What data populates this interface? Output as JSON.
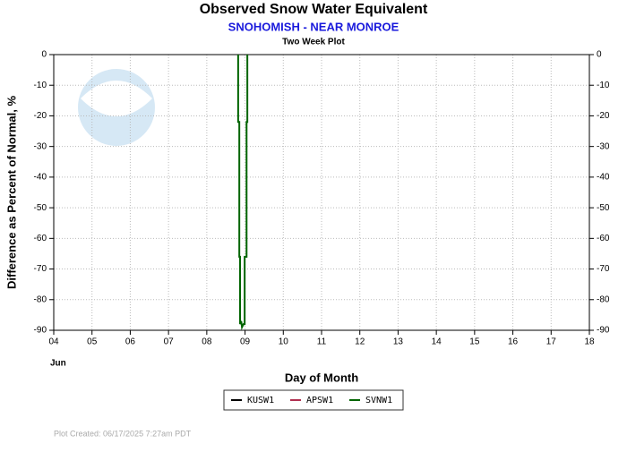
{
  "chart_data": {
    "type": "line",
    "title": "Observed Snow Water Equivalent",
    "subtitle": "SNOHOMISH - NEAR MONROE",
    "subtitle2": "Two Week Plot",
    "ylabel": "Difference as Percent of Normal, %",
    "xlabel": "Day of Month",
    "x_annotation": "Jun",
    "footer": "Plot Created: 06/17/2025 7:27am PDT",
    "xlim": [
      4,
      18
    ],
    "xticks": [
      {
        "value": 4,
        "label": "04"
      },
      {
        "value": 5,
        "label": "05"
      },
      {
        "value": 6,
        "label": "06"
      },
      {
        "value": 7,
        "label": "07"
      },
      {
        "value": 8,
        "label": "08"
      },
      {
        "value": 9,
        "label": "09"
      },
      {
        "value": 10,
        "label": "10"
      },
      {
        "value": 11,
        "label": "11"
      },
      {
        "value": 12,
        "label": "12"
      },
      {
        "value": 13,
        "label": "13"
      },
      {
        "value": 14,
        "label": "14"
      },
      {
        "value": 15,
        "label": "15"
      },
      {
        "value": 16,
        "label": "16"
      },
      {
        "value": 17,
        "label": "17"
      },
      {
        "value": 18,
        "label": "18"
      }
    ],
    "ylim": [
      -90,
      0
    ],
    "yticks": [
      0,
      -10,
      -20,
      -30,
      -40,
      -50,
      -60,
      -70,
      -80,
      -90
    ],
    "grid": true,
    "series": [
      {
        "name": "KUSW1",
        "color": "#000000",
        "x": [],
        "values": []
      },
      {
        "name": "APSW1",
        "color": "#b03050",
        "x": [],
        "values": []
      },
      {
        "name": "SVNW1",
        "color": "#006400",
        "x": [
          8.82,
          8.82,
          8.85,
          8.85,
          8.87,
          8.87,
          8.9,
          8.92,
          8.96,
          8.99,
          8.99,
          9.04,
          9.04,
          9.06,
          9.06
        ],
        "values": [
          0,
          -22,
          -22,
          -66,
          -66,
          -88,
          -87,
          -89,
          -88,
          -88,
          -66,
          -66,
          -22,
          -22,
          0
        ]
      }
    ]
  }
}
